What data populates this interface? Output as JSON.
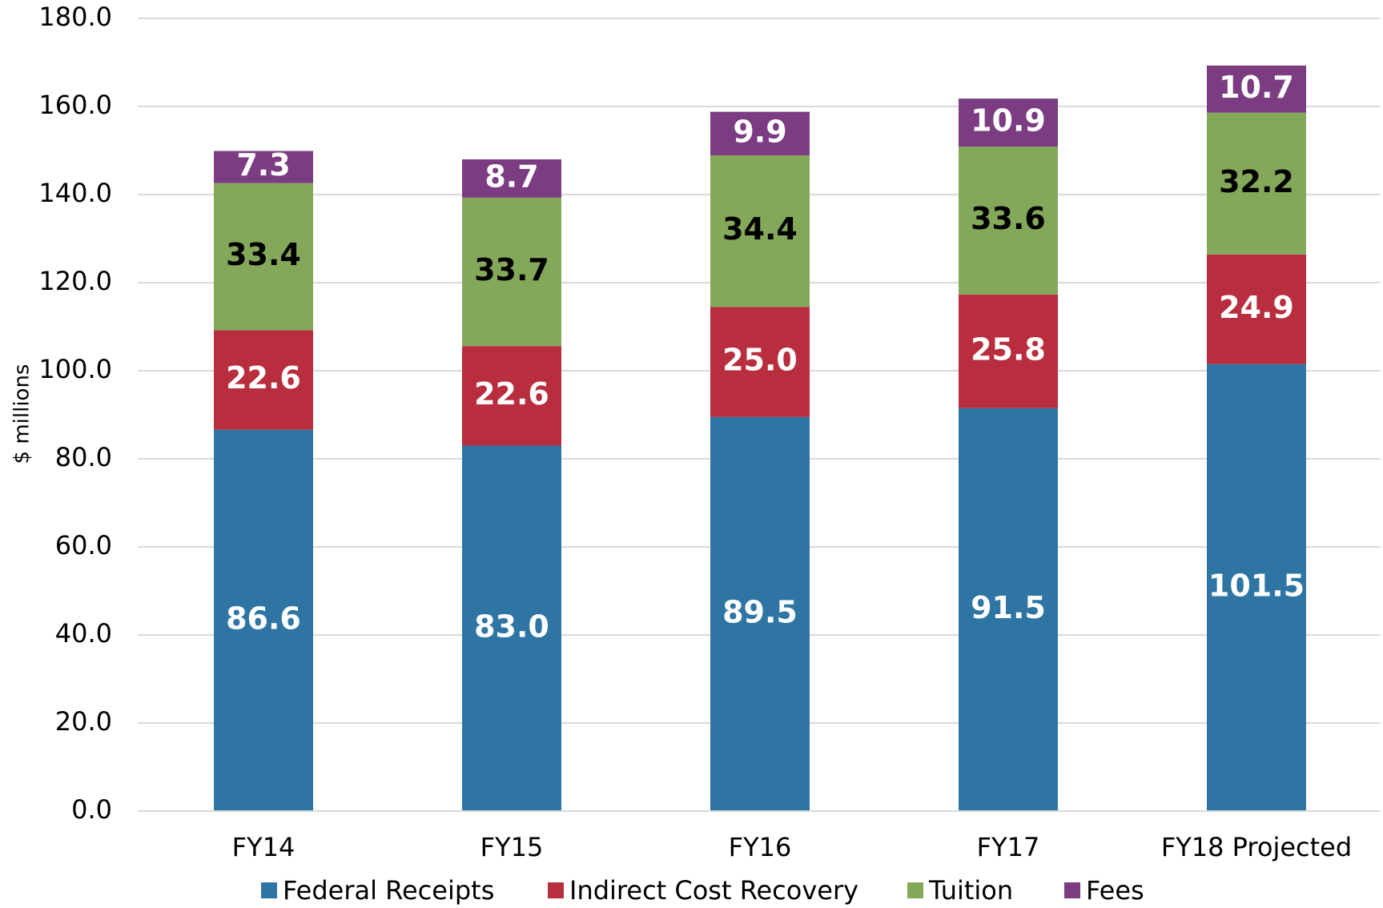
{
  "chart_data": {
    "type": "stacked_bar",
    "y_label": "$ millions",
    "categories": [
      "FY14",
      "FY15",
      "FY16",
      "FY17",
      "FY18 Projected"
    ],
    "series": [
      {
        "name": "Federal Receipts",
        "color": "#2e75a3",
        "label_color": "#ffffff",
        "values": [
          86.6,
          83.0,
          89.5,
          91.5,
          101.5
        ],
        "value_labels": [
          "86.6",
          "83.0",
          "89.5",
          "91.5",
          "101.5"
        ]
      },
      {
        "name": "Indirect Cost Recovery",
        "color": "#b82e3e",
        "label_color": "#ffffff",
        "values": [
          22.6,
          22.6,
          25.0,
          25.8,
          24.9
        ],
        "value_labels": [
          "22.6",
          "22.6",
          "25.0",
          "25.8",
          "24.9"
        ]
      },
      {
        "name": "Tuition",
        "color": "#84a85a",
        "label_color": "#000000",
        "values": [
          33.4,
          33.7,
          34.4,
          33.6,
          32.2
        ],
        "value_labels": [
          "33.4",
          "33.7",
          "34.4",
          "33.6",
          "32.2"
        ]
      },
      {
        "name": "Fees",
        "color": "#7b3c82",
        "label_color": "#ffffff",
        "values": [
          7.3,
          8.7,
          9.9,
          10.9,
          10.7
        ],
        "value_labels": [
          "7.3",
          "8.7",
          "9.9",
          "10.9",
          "10.7"
        ]
      }
    ],
    "ylim": [
      0,
      180
    ],
    "yticks": [
      {
        "value": 0,
        "label": "0.0"
      },
      {
        "value": 20,
        "label": "20.0"
      },
      {
        "value": 40,
        "label": "40.0"
      },
      {
        "value": 60,
        "label": "60.0"
      },
      {
        "value": 80,
        "label": "80.0"
      },
      {
        "value": 100,
        "label": "100.0"
      },
      {
        "value": 120,
        "label": "120.0"
      },
      {
        "value": 140,
        "label": "140.0"
      },
      {
        "value": 160,
        "label": "160.0"
      },
      {
        "value": 180,
        "label": "180.0"
      }
    ],
    "grid": true,
    "legend": "bottom"
  }
}
